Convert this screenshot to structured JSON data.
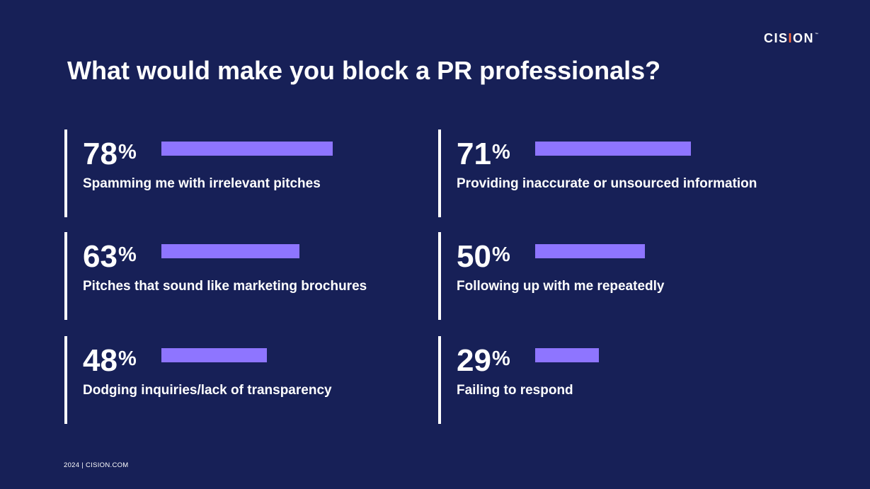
{
  "brand": {
    "logo_text_pre": "CIS",
    "logo_text_accent": "I",
    "logo_text_post": "ON",
    "logo_mark": "™",
    "background_color": "#172057",
    "bar_color": "#8e75ff",
    "accent_color": "#ff6a3d"
  },
  "footer": {
    "text": "2024 | CISION.COM"
  },
  "chart_data": {
    "type": "bar",
    "title": "What would make you block a PR professionals?",
    "unit": "%",
    "ylim": [
      0,
      100
    ],
    "categories": [
      "Spamming me with irrelevant pitches",
      "Providing inaccurate or unsourced information",
      "Pitches that sound like marketing brochures",
      "Following up with me repeatedly",
      "Dodging inquiries/lack of transparency",
      "Failing to respond"
    ],
    "values": [
      78,
      71,
      63,
      50,
      48,
      29
    ]
  }
}
